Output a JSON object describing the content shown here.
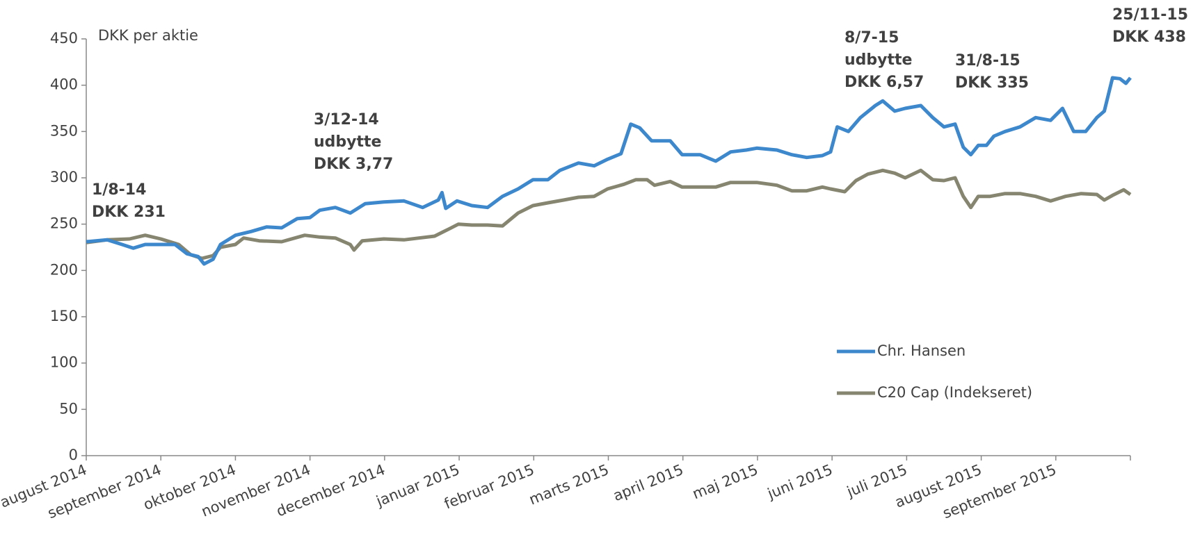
{
  "chart_data": {
    "type": "line",
    "y_label": "DKK per aktie",
    "xlim": [
      0,
      14
    ],
    "xticks": [
      {
        "value": 0,
        "label": "august 2014"
      },
      {
        "value": 1,
        "label": "september 2014"
      },
      {
        "value": 2,
        "label": "oktober 2014"
      },
      {
        "value": 3,
        "label": "november 2014"
      },
      {
        "value": 4,
        "label": "december 2014"
      },
      {
        "value": 5,
        "label": "januar 2015"
      },
      {
        "value": 6,
        "label": "februar 2015"
      },
      {
        "value": 7,
        "label": "marts 2015"
      },
      {
        "value": 8,
        "label": "april 2015"
      },
      {
        "value": 9,
        "label": "maj 2015"
      },
      {
        "value": 10,
        "label": "juni 2015"
      },
      {
        "value": 11,
        "label": "juli 2015"
      },
      {
        "value": 12,
        "label": "august 2015"
      },
      {
        "value": 13,
        "label": "september 2015"
      }
    ],
    "ylim": [
      0,
      450
    ],
    "yticks": [
      0,
      50,
      100,
      150,
      200,
      250,
      300,
      350,
      400,
      450
    ],
    "legend": "lower right",
    "series": [
      {
        "name": "Chr. Hansen",
        "color": "#3d87cc",
        "x": [
          0,
          0.28,
          0.48,
          0.63,
          0.79,
          1,
          1.19,
          1.35,
          1.5,
          1.58,
          1.7,
          1.8,
          2,
          2.21,
          2.42,
          2.62,
          2.83,
          3,
          3.13,
          3.34,
          3.54,
          3.74,
          3.99,
          4.26,
          4.51,
          4.72,
          4.77,
          4.82,
          4.97,
          5.17,
          5.38,
          5.58,
          5.79,
          5.99,
          6.19,
          6.35,
          6.6,
          6.81,
          6.99,
          7.17,
          7.3,
          7.42,
          7.58,
          7.83,
          7.99,
          8.23,
          8.44,
          8.64,
          8.85,
          8.99,
          9.26,
          9.46,
          9.66,
          9.87,
          9.98,
          10.07,
          10.22,
          10.38,
          10.58,
          10.68,
          10.84,
          10.98,
          11.19,
          11.35,
          11.5,
          11.65,
          11.76,
          11.86,
          11.96,
          12.07,
          12.17,
          12.32,
          12.52,
          12.73,
          12.93,
          13.09,
          13.24,
          13.4,
          13.55,
          13.65,
          13.76,
          13.86,
          13.94,
          14
        ],
        "values": [
          231,
          233,
          228,
          224,
          228,
          228,
          228,
          218,
          215,
          207,
          212,
          228,
          238,
          242,
          247,
          246,
          256,
          257,
          265,
          268,
          262,
          272,
          274,
          275,
          268,
          276,
          284,
          267,
          275,
          270,
          268,
          280,
          288,
          298,
          298,
          308,
          316,
          313,
          320,
          326,
          358,
          354,
          340,
          340,
          325,
          325,
          318,
          328,
          330,
          332,
          330,
          325,
          322,
          324,
          328,
          355,
          350,
          365,
          378,
          383,
          372,
          375,
          378,
          365,
          355,
          358,
          333,
          325,
          335,
          335,
          345,
          350,
          355,
          365,
          362,
          375,
          350,
          350,
          365,
          372,
          408,
          407,
          402,
          408
        ]
      },
      {
        "name": "C20 Cap (Indekseret)",
        "color": "#858570",
        "x": [
          0,
          0.28,
          0.58,
          0.79,
          1,
          1.24,
          1.4,
          1.55,
          1.7,
          1.8,
          2,
          2.11,
          2.32,
          2.62,
          2.93,
          3.13,
          3.34,
          3.54,
          3.59,
          3.7,
          3.99,
          4.26,
          4.46,
          4.67,
          4.87,
          4.99,
          5.17,
          5.38,
          5.58,
          5.79,
          5.99,
          6.19,
          6.4,
          6.6,
          6.81,
          6.99,
          7.21,
          7.37,
          7.52,
          7.62,
          7.83,
          7.99,
          8.23,
          8.44,
          8.64,
          8.99,
          9.26,
          9.46,
          9.66,
          9.87,
          9.98,
          10.17,
          10.32,
          10.48,
          10.68,
          10.84,
          10.98,
          11.19,
          11.35,
          11.5,
          11.65,
          11.76,
          11.86,
          11.96,
          12.12,
          12.32,
          12.52,
          12.73,
          12.93,
          13.13,
          13.34,
          13.55,
          13.65,
          13.76,
          13.91,
          14
        ],
        "values": [
          230,
          233,
          234,
          238,
          234,
          228,
          217,
          213,
          216,
          225,
          228,
          235,
          232,
          231,
          238,
          236,
          235,
          228,
          222,
          232,
          234,
          233,
          235,
          237,
          245,
          250,
          249,
          249,
          248,
          262,
          270,
          273,
          276,
          279,
          280,
          288,
          293,
          298,
          298,
          292,
          296,
          290,
          290,
          290,
          295,
          295,
          292,
          286,
          286,
          290,
          288,
          285,
          297,
          304,
          308,
          305,
          300,
          308,
          298,
          297,
          300,
          280,
          268,
          280,
          280,
          283,
          283,
          280,
          275,
          280,
          283,
          282,
          276,
          281,
          287,
          282
        ]
      }
    ],
    "annotations": [
      [
        "1/8-14",
        "DKK 231"
      ],
      [
        "3/12-14",
        "udbytte",
        "DKK 3,77"
      ],
      [
        "8/7-15",
        "udbytte",
        "DKK 6,57"
      ],
      [
        "31/8-15",
        "DKK 335"
      ],
      [
        "25/11-15",
        "DKK 438"
      ]
    ]
  }
}
